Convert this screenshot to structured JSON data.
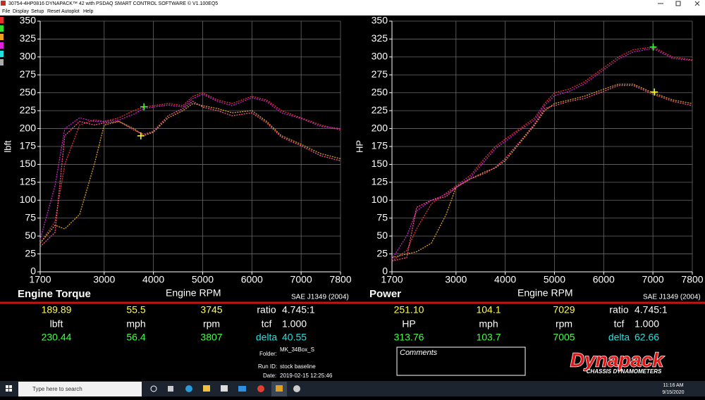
{
  "window": {
    "title": "30754-4HP0816 DYNAPACK™ 42 with PSDAQ SMART CONTROL SOFTWARE © V1.100EQ5",
    "menu": [
      "File",
      "Display",
      "Setup",
      "Reset",
      "Autoplot",
      "Help"
    ]
  },
  "chart_data": [
    {
      "type": "line",
      "title": "Engine Torque",
      "x_label": "Engine RPM",
      "y_label": "lbft",
      "note": "SAE J1349 (2004)",
      "xlim": [
        1700,
        7800
      ],
      "xticks": [
        1700,
        3000,
        4000,
        5000,
        6000,
        7000,
        7800
      ],
      "ylim": [
        0,
        350
      ],
      "yticks": [
        0,
        25,
        50,
        75,
        100,
        125,
        150,
        175,
        200,
        225,
        250,
        275,
        300,
        325,
        350
      ],
      "grid": true,
      "x": [
        1700,
        2000,
        2200,
        2500,
        2800,
        3000,
        3300,
        3600,
        3800,
        4000,
        4300,
        4600,
        4800,
        5000,
        5300,
        5600,
        6000,
        6300,
        6600,
        7000,
        7400,
        7800
      ],
      "series": [
        {
          "color": "#e83030",
          "values": [
            40,
            70,
            150,
            205,
            212,
            210,
            215,
            225,
            230,
            232,
            235,
            232,
            245,
            250,
            240,
            235,
            245,
            240,
            225,
            215,
            205,
            198
          ]
        },
        {
          "color": "#d020d0",
          "values": [
            45,
            120,
            200,
            215,
            210,
            210,
            212,
            220,
            228,
            230,
            233,
            230,
            242,
            248,
            238,
            232,
            243,
            238,
            222,
            214,
            203,
            200
          ]
        },
        {
          "color": "#e0a020",
          "values": [
            40,
            65,
            60,
            80,
            150,
            205,
            210,
            200,
            190,
            195,
            215,
            225,
            235,
            232,
            228,
            222,
            225,
            210,
            190,
            178,
            165,
            158
          ]
        },
        {
          "color": "#ff5090",
          "values": [
            35,
            55,
            190,
            210,
            205,
            208,
            210,
            198,
            192,
            196,
            218,
            228,
            238,
            230,
            225,
            218,
            222,
            208,
            188,
            176,
            162,
            155
          ]
        }
      ],
      "cursors": [
        {
          "x": 3745,
          "y": 189.89,
          "color": "#ffff40"
        },
        {
          "x": 3807,
          "y": 230.44,
          "color": "#40ff40"
        }
      ]
    },
    {
      "type": "line",
      "title": "Power",
      "x_label": "Engine RPM",
      "y_label": "HP",
      "note": "SAE J1349 (2004)",
      "xlim": [
        1700,
        7800
      ],
      "xticks": [
        1700,
        3000,
        4000,
        5000,
        6000,
        7000,
        7800
      ],
      "ylim": [
        0,
        350
      ],
      "yticks": [
        0,
        25,
        50,
        75,
        100,
        125,
        150,
        175,
        200,
        225,
        250,
        275,
        300,
        325,
        350
      ],
      "grid": true,
      "x": [
        1700,
        2000,
        2200,
        2500,
        2800,
        3000,
        3300,
        3600,
        3800,
        4000,
        4300,
        4600,
        4800,
        5000,
        5300,
        5600,
        6000,
        6300,
        6600,
        7000,
        7400,
        7800
      ],
      "series": [
        {
          "color": "#e83030",
          "values": [
            15,
            30,
            60,
            95,
            110,
            120,
            135,
            160,
            175,
            185,
            200,
            215,
            235,
            250,
            255,
            265,
            285,
            300,
            310,
            314,
            300,
            296
          ]
        },
        {
          "color": "#d020d0",
          "values": [
            18,
            50,
            85,
            100,
            108,
            118,
            132,
            156,
            172,
            182,
            198,
            212,
            232,
            246,
            252,
            262,
            282,
            297,
            307,
            312,
            298,
            295
          ]
        },
        {
          "color": "#e0a020",
          "values": [
            20,
            25,
            28,
            40,
            80,
            118,
            130,
            140,
            145,
            155,
            180,
            205,
            225,
            235,
            240,
            245,
            255,
            262,
            262,
            250,
            240,
            235
          ]
        },
        {
          "color": "#ff5090",
          "values": [
            15,
            20,
            90,
            100,
            105,
            118,
            130,
            138,
            146,
            158,
            182,
            207,
            228,
            232,
            238,
            242,
            252,
            260,
            260,
            248,
            238,
            232
          ]
        }
      ],
      "cursors": [
        {
          "x": 7029,
          "y": 251.1,
          "color": "#ffff40"
        },
        {
          "x": 7005,
          "y": 313.76,
          "color": "#40ff40"
        }
      ]
    }
  ],
  "readouts": [
    {
      "rows": [
        {
          "values": [
            "189.89",
            "55.5",
            "3745"
          ],
          "key": "ratio",
          "key_value": "4.745:1"
        },
        {
          "values": [
            "lbft",
            "mph",
            "rpm"
          ],
          "key": "tcf",
          "key_value": "1.000"
        },
        {
          "values": [
            "230.44",
            "56.4",
            "3807"
          ],
          "key": "delta",
          "key_value": "40.55"
        }
      ]
    },
    {
      "rows": [
        {
          "values": [
            "251.10",
            "104.1",
            "7029"
          ],
          "key": "ratio",
          "key_value": "4.745:1"
        },
        {
          "values": [
            "HP",
            "mph",
            "rpm"
          ],
          "key": "tcf",
          "key_value": "1.000"
        },
        {
          "values": [
            "313.76",
            "103.7",
            "7005"
          ],
          "key": "delta",
          "key_value": "62.66"
        }
      ]
    }
  ],
  "run_info": {
    "folder_label": "Folder:",
    "folder": "MK_34Box_S",
    "run_id_label": "Run ID:",
    "run_id": "stock baseline",
    "date_label": "Date:",
    "date": "2019-02-15 12:25:46"
  },
  "comments": {
    "label": "Comments"
  },
  "logo": {
    "name": "Dynapack",
    "tagline": "CHASSIS DYNAMOMETERS"
  },
  "taskbar": {
    "search": "Type here to search",
    "time": "11:16 AM",
    "date": "9/15/2020"
  }
}
